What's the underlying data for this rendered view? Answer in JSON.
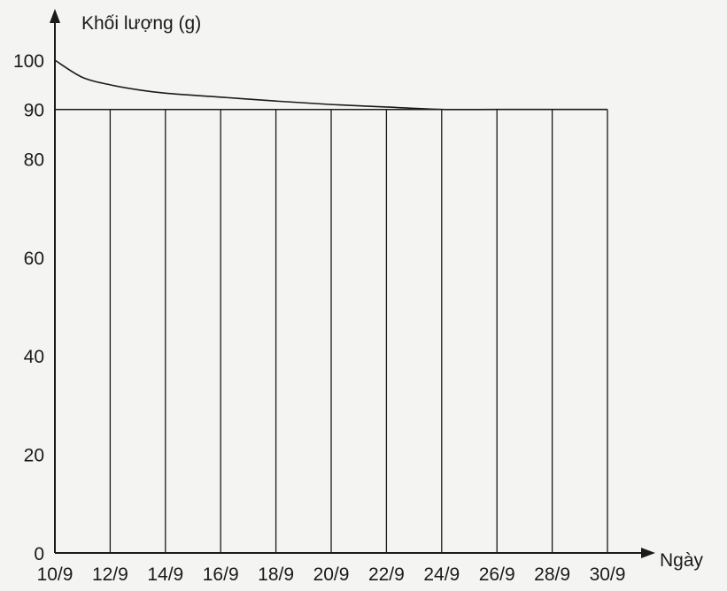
{
  "chart_data": {
    "type": "line",
    "title": "",
    "xlabel": "Ngày",
    "ylabel": "Khối lượng (g)",
    "x_ticks": [
      "10/9",
      "12/9",
      "14/9",
      "16/9",
      "18/9",
      "20/9",
      "22/9",
      "24/9",
      "26/9",
      "28/9",
      "30/9"
    ],
    "y_ticks": [
      0,
      20,
      40,
      60,
      80,
      90,
      100
    ],
    "ylim": [
      0,
      100
    ],
    "grid": "vertical lines at each labeled day",
    "series": [
      {
        "name": "",
        "x": [
          "10/9",
          "11/9",
          "12/9",
          "13/9",
          "14/9",
          "16/9",
          "18/9",
          "20/9",
          "22/9",
          "24/9",
          "26/9",
          "28/9",
          "30/9"
        ],
        "y": [
          100,
          96.5,
          95,
          94,
          93.3,
          92.5,
          91.7,
          91,
          90.5,
          90,
          90,
          90,
          90
        ]
      }
    ],
    "reference_line": {
      "y": 90,
      "from": "10/9",
      "to": "30/9"
    },
    "colors": {
      "line": "#1a1a1a",
      "background": "#f4f4f2"
    }
  }
}
